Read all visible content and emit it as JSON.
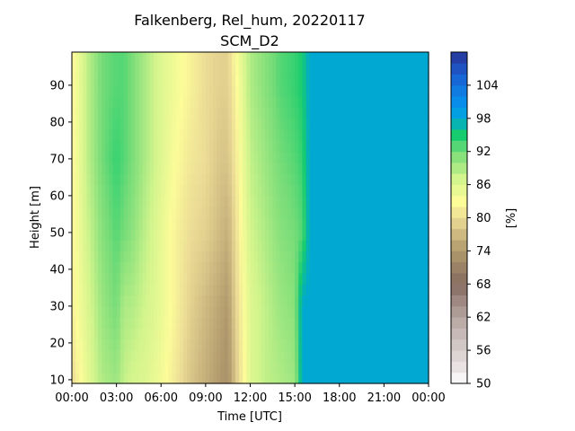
{
  "chart_data": {
    "type": "heatmap",
    "title": "Falkenberg, Rel_hum, 20220117",
    "subtitle": "SCM_D2",
    "xlabel": "Time [UTC]",
    "ylabel": "Height [m]",
    "colorbar_label": "[%]",
    "x_tick_labels": [
      "00:00",
      "03:00",
      "06:00",
      "09:00",
      "12:00",
      "15:00",
      "18:00",
      "21:00",
      "00:00"
    ],
    "x_range_hours": [
      0,
      24
    ],
    "y_ticks": [
      10,
      20,
      30,
      40,
      50,
      60,
      70,
      80,
      90
    ],
    "y_range": [
      9,
      99
    ],
    "colorbar_ticks": [
      50,
      56,
      62,
      68,
      74,
      80,
      86,
      92,
      98,
      104
    ],
    "colorbar_range": [
      50,
      110
    ],
    "colormap": "terrain_r",
    "time_hours": [
      0,
      1,
      2,
      3,
      3.5,
      4,
      5,
      6,
      7,
      8,
      9,
      10,
      10.5,
      11,
      12,
      13,
      14,
      15,
      15.5,
      16,
      17,
      24
    ],
    "heights": [
      10,
      30,
      50,
      70,
      90,
      99
    ],
    "rel_hum": [
      [
        80,
        82,
        82,
        82,
        82,
        82
      ],
      [
        85,
        86,
        87,
        88,
        88,
        88
      ],
      [
        89,
        90,
        91,
        92,
        92,
        92
      ],
      [
        90,
        92,
        93,
        94,
        93,
        93
      ],
      [
        88,
        89,
        92,
        93,
        93,
        93
      ],
      [
        87,
        89,
        91,
        92,
        92,
        92
      ],
      [
        86,
        87,
        88,
        89,
        89,
        89
      ],
      [
        84,
        85,
        85,
        86,
        86,
        86
      ],
      [
        81,
        82,
        82,
        83,
        84,
        84
      ],
      [
        78,
        79,
        80,
        81,
        82,
        82
      ],
      [
        76,
        77,
        79,
        80,
        80,
        80
      ],
      [
        74,
        75,
        77,
        78,
        79,
        79
      ],
      [
        73,
        74,
        76,
        78,
        79,
        79
      ],
      [
        78,
        79,
        80,
        81,
        82,
        83
      ],
      [
        86,
        86,
        87,
        88,
        89,
        89
      ],
      [
        88,
        88,
        89,
        90,
        91,
        91
      ],
      [
        89,
        90,
        91,
        92,
        93,
        93
      ],
      [
        90,
        91,
        92,
        93,
        94,
        94
      ],
      [
        98,
        98,
        93,
        94,
        95,
        95
      ],
      [
        98,
        98,
        98,
        98,
        98,
        98
      ],
      [
        98,
        98,
        98,
        98,
        98,
        98
      ],
      [
        98,
        98,
        98,
        98,
        98,
        98
      ]
    ]
  }
}
